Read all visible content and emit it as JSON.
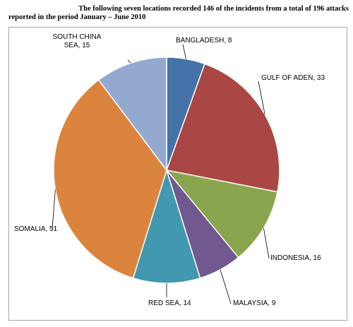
{
  "caption": {
    "line1": "The following seven locations recorded 146 of the incidents from a total of 196 attacks",
    "line2": "reported in the period January – June 2010"
  },
  "chart_data": {
    "type": "pie",
    "title": "",
    "start_angle_deg": 0,
    "direction": "clockwise",
    "slices": [
      {
        "label": "BANGLADESH, 8",
        "category": "BANGLADESH",
        "value": 8,
        "color": "#4572a7"
      },
      {
        "label": "GULF OF ADEN, 33",
        "category": "GULF OF ADEN",
        "value": 33,
        "color": "#aa4643"
      },
      {
        "label": "INDONESIA, 16",
        "category": "INDONESIA",
        "value": 16,
        "color": "#89a54e"
      },
      {
        "label": "MALAYSIA, 9",
        "category": "MALAYSIA",
        "value": 9,
        "color": "#71588f"
      },
      {
        "label": "RED SEA, 14",
        "category": "RED SEA",
        "value": 14,
        "color": "#4198af"
      },
      {
        "label": "SOMALIA, 51",
        "category": "SOMALIA",
        "value": 51,
        "color": "#db843d"
      },
      {
        "label": "SOUTH CHINA SEA, 15",
        "label_lines": [
          "SOUTH CHINA",
          "SEA, 15"
        ],
        "category": "SOUTH CHINA SEA",
        "value": 15,
        "color": "#93a9cf"
      }
    ]
  }
}
